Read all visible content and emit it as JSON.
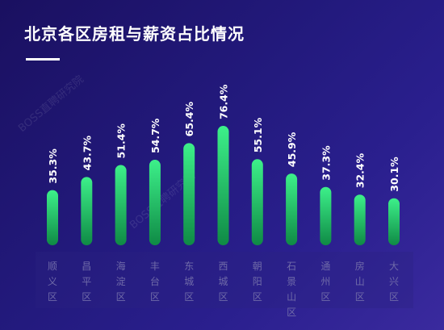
{
  "title": "北京各区房租与薪资占比情况",
  "watermarks": [
    "BOSS直聘研究院",
    "BOSS直聘研究院"
  ],
  "colors": {
    "background": "#231a7e",
    "bar_top": "#3df08a",
    "bar_bottom": "#0f8a45",
    "label": "#ffffff",
    "category": "#6f6aa8",
    "category_band": "#2b2380"
  },
  "chart_data": {
    "type": "bar",
    "title": "北京各区房租与薪资占比情况",
    "categories": [
      "顺义区",
      "昌平区",
      "海淀区",
      "丰台区",
      "东城区",
      "西城区",
      "朝阳区",
      "石景山区",
      "通州区",
      "房山区",
      "大兴区"
    ],
    "values": [
      35.3,
      43.7,
      51.4,
      54.7,
      65.4,
      76.4,
      55.1,
      45.9,
      37.3,
      32.4,
      30.1
    ],
    "data_labels": [
      "35.3%",
      "43.7%",
      "51.4%",
      "54.7%",
      "65.4%",
      "76.4%",
      "55.1%",
      "45.9%",
      "37.3%",
      "32.4%",
      "30.1%"
    ],
    "unit": "%",
    "grid": false,
    "legend": "none"
  }
}
